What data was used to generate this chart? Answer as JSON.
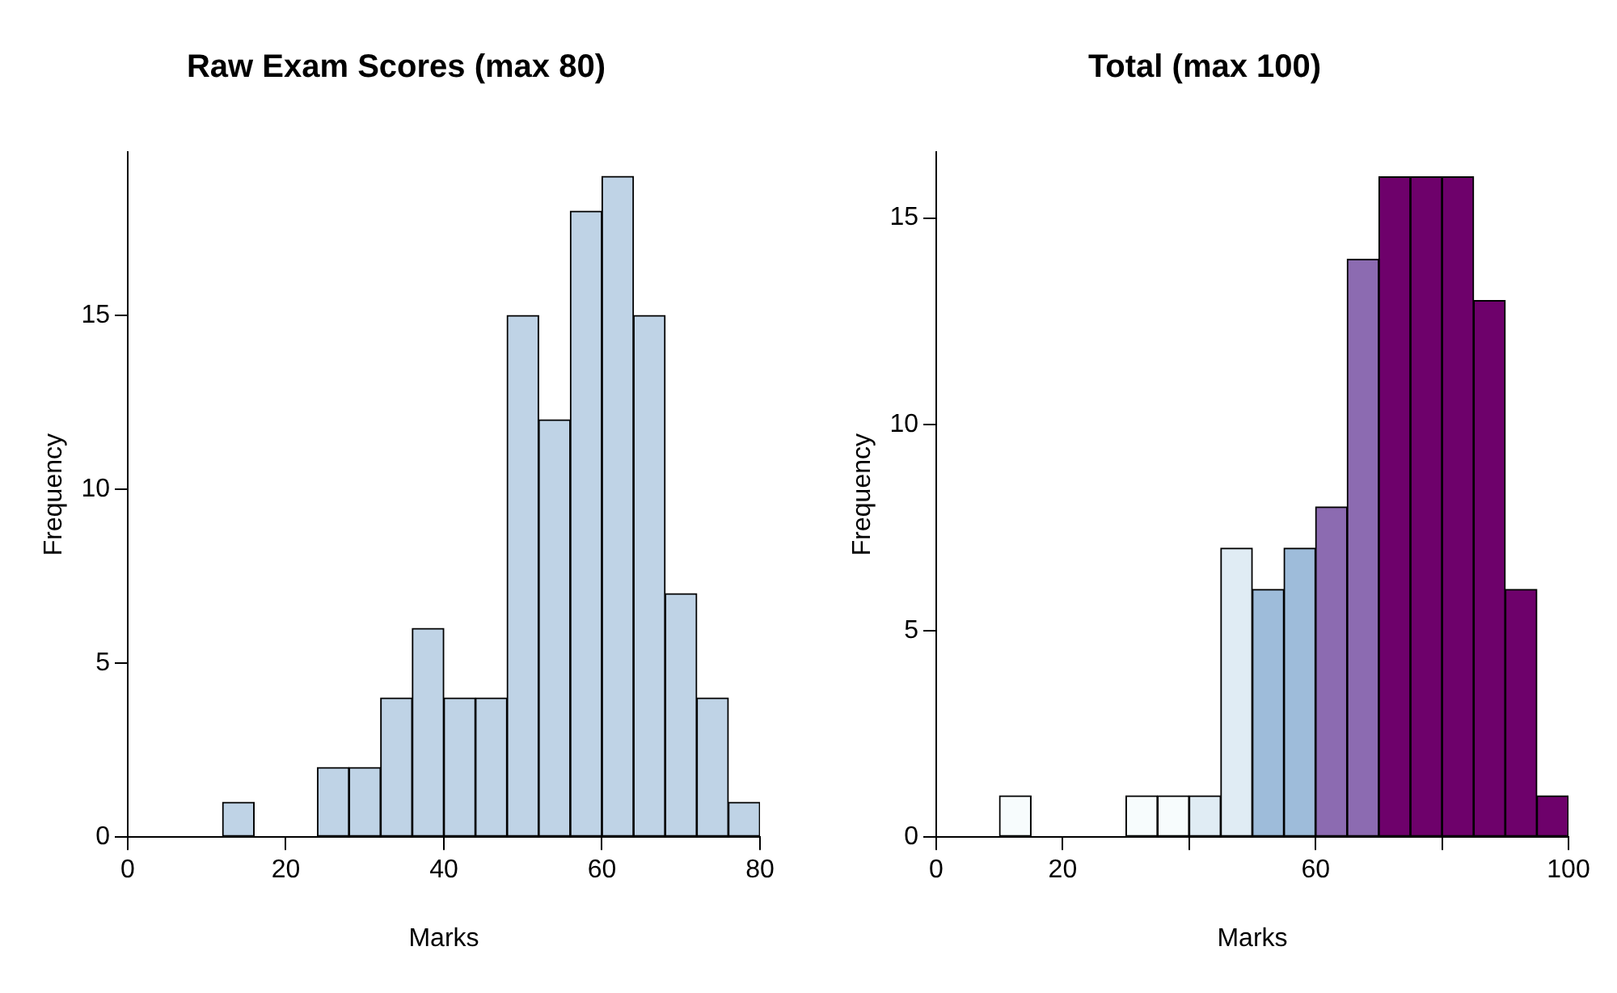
{
  "chart_data": [
    {
      "type": "histogram",
      "title": "Raw Exam Scores (max 80)",
      "xlabel": "Marks",
      "ylabel": "Frequency",
      "bins": [
        0,
        4,
        8,
        12,
        16,
        20,
        24,
        28,
        32,
        36,
        40,
        44,
        48,
        52,
        56,
        60,
        64,
        68,
        72,
        76,
        80
      ],
      "values": [
        0,
        0,
        0,
        1,
        0,
        0,
        2,
        2,
        4,
        6,
        4,
        4,
        15,
        12,
        18,
        19,
        15,
        7,
        4,
        1
      ],
      "color": "#bfd3e6",
      "xlim": [
        0,
        80
      ],
      "xticks": [
        0,
        20,
        40,
        60,
        80
      ],
      "ylim": [
        0,
        19.7
      ],
      "yticks": [
        0,
        5,
        10,
        15
      ]
    },
    {
      "type": "histogram",
      "title": "Total (max 100)",
      "xlabel": "Marks",
      "ylabel": "Frequency",
      "bins": [
        0,
        5,
        10,
        15,
        20,
        25,
        30,
        35,
        40,
        45,
        50,
        55,
        60,
        65,
        70,
        75,
        80,
        85,
        90,
        95,
        100
      ],
      "values": [
        0,
        0,
        1,
        0,
        0,
        0,
        1,
        1,
        1,
        7,
        6,
        7,
        8,
        14,
        16,
        16,
        16,
        13,
        6,
        1
      ],
      "colors": [
        "#f7fcfd",
        "#f7fcfd",
        "#f7fcfd",
        "#f7fcfd",
        "#f7fcfd",
        "#f7fcfd",
        "#f7fcfd",
        "#f7fcfd",
        "#e0ecf4",
        "#e0ecf4",
        "#9ebcda",
        "#9ebcda",
        "#8c6bb1",
        "#8c6bb1",
        "#6e016b",
        "#6e016b",
        "#6e016b",
        "#6e016b",
        "#6e016b",
        "#6e016b"
      ],
      "xlim": [
        0,
        100
      ],
      "xticks": [
        0,
        20,
        {
          "value": 40,
          "label": null
        },
        60,
        {
          "value": 80,
          "label": null
        },
        100
      ],
      "ylim": [
        0,
        16.6
      ],
      "yticks": [
        0,
        5,
        10,
        15
      ]
    }
  ]
}
